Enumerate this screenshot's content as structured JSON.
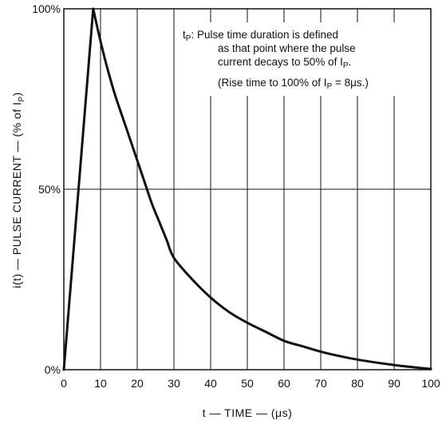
{
  "chart_data": {
    "type": "line",
    "title": "",
    "xlabel": "t — TIME — (μs)",
    "ylabel": "i(t) — PULSE CURRENT — (% of I",
    "ylabel_sub": "P",
    "ylabel_end": ")",
    "xlim": [
      0,
      100
    ],
    "ylim": [
      0,
      100
    ],
    "x_ticks": [
      0,
      10,
      20,
      30,
      40,
      50,
      60,
      70,
      80,
      90,
      100
    ],
    "x_tick_labels": [
      "0",
      "10",
      "20",
      "30",
      "40",
      "50",
      "60",
      "70",
      "80",
      "90",
      "100"
    ],
    "y_ticks": [
      0,
      50,
      100
    ],
    "y_tick_labels": [
      "0%",
      "50%",
      "100%"
    ],
    "grid": {
      "vertical": true,
      "horizontal_at": [
        50
      ]
    },
    "series": [
      {
        "x": [
          0,
          8,
          10,
          12,
          14,
          16,
          18,
          20,
          22,
          24,
          26,
          28,
          30,
          35,
          40,
          45,
          50,
          55,
          60,
          65,
          70,
          75,
          80,
          85,
          90,
          95,
          100
        ],
        "y": [
          0,
          100,
          91,
          83,
          76,
          70,
          64,
          58,
          52,
          46,
          41,
          36,
          31,
          25,
          20,
          16,
          13,
          10.5,
          8,
          6.5,
          5,
          3.8,
          2.8,
          2,
          1.3,
          0.7,
          0.2
        ]
      }
    ],
    "annotation": {
      "line1_prefix": "t",
      "line1_prefix_sub": "P",
      "line1_text": ": Pulse time duration is defined",
      "line2": "as that point where the pulse",
      "line3_text": "current decays to 50% of I",
      "line3_sub": "P",
      "line3_end": ".",
      "line4_text": "(Rise time to 100% of I",
      "line4_sub": "P",
      "line4_end": " = 8μs.)"
    }
  }
}
